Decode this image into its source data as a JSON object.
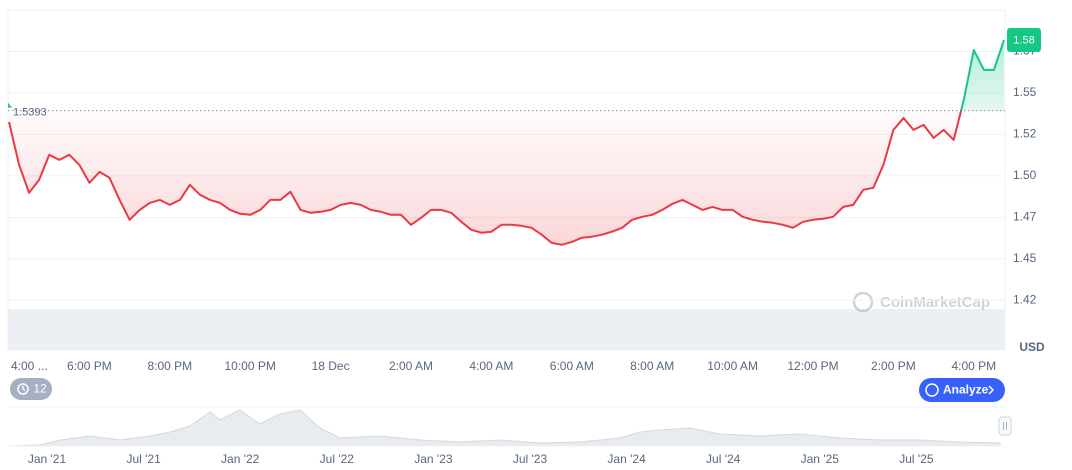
{
  "chart_data": {
    "type": "line",
    "categories": [
      "4:00 ...",
      null,
      null,
      null,
      null,
      null,
      null,
      null,
      "6:00 PM",
      null,
      null,
      null,
      null,
      null,
      null,
      null,
      "8:00 PM",
      null,
      null,
      null,
      null,
      null,
      null,
      null,
      "10:00 PM",
      null,
      null,
      null,
      null,
      null,
      null,
      null,
      "18 Dec",
      null,
      null,
      null,
      null,
      null,
      null,
      null,
      "2:00 AM",
      null,
      null,
      null,
      null,
      null,
      null,
      null,
      "4:00 AM",
      null,
      null,
      null,
      null,
      null,
      null,
      null,
      "6:00 AM",
      null,
      null,
      null,
      null,
      null,
      null,
      null,
      "8:00 AM",
      null,
      null,
      null,
      null,
      null,
      null,
      null,
      "10:00 AM",
      null,
      null,
      null,
      null,
      null,
      null,
      null,
      "12:00 PM",
      null,
      null,
      null,
      null,
      null,
      null,
      null,
      "2:00 PM",
      null,
      null,
      null,
      null,
      null,
      null,
      null,
      "4:00 PM",
      null,
      null,
      null
    ],
    "values": [
      1.5325,
      1.5066,
      1.4898,
      1.4976,
      1.5127,
      1.5096,
      1.5127,
      1.5066,
      1.4958,
      1.5024,
      1.4988,
      1.4855,
      1.4735,
      1.4795,
      1.4837,
      1.4855,
      1.4825,
      1.4855,
      1.4946,
      1.4886,
      1.4855,
      1.4837,
      1.4795,
      1.4771,
      1.4765,
      1.4795,
      1.4855,
      1.4855,
      1.4904,
      1.4795,
      1.4777,
      1.4783,
      1.4795,
      1.4825,
      1.4837,
      1.4825,
      1.4795,
      1.4783,
      1.4765,
      1.4765,
      1.4705,
      1.4747,
      1.4795,
      1.4795,
      1.4777,
      1.4723,
      1.4675,
      1.4657,
      1.4663,
      1.4705,
      1.4705,
      1.4699,
      1.4687,
      1.4645,
      1.4596,
      1.4584,
      1.4602,
      1.4627,
      1.4633,
      1.4645,
      1.4663,
      1.4687,
      1.4735,
      1.4753,
      1.4765,
      1.4795,
      1.4831,
      1.4855,
      1.4825,
      1.4795,
      1.4813,
      1.4795,
      1.4795,
      1.4753,
      1.4735,
      1.4723,
      1.4717,
      1.4705,
      1.4687,
      1.4723,
      1.4735,
      1.4741,
      1.4753,
      1.4813,
      1.4825,
      1.4916,
      1.4928,
      1.5066,
      1.5277,
      1.5349,
      1.5277,
      1.5307,
      1.5229,
      1.5277,
      1.5217,
      1.5458,
      1.5759,
      1.5639,
      1.5639,
      1.5819
    ],
    "colors": {
      "above": "#16c784",
      "below": "#ea3943"
    },
    "reference_price": 1.5393,
    "last_price_label": "1.58",
    "y_axis_label": "USD",
    "ylim": [
      1.395,
      1.6
    ],
    "yticks": [
      {
        "value": 1.575,
        "label": "1.57"
      },
      1.55,
      {
        "value": 1.525,
        "label": "1.52"
      },
      {
        "value": 1.5,
        "label": "1.50"
      },
      {
        "value": 1.475,
        "label": "1.47"
      },
      1.45,
      {
        "value": 1.425,
        "label": "1.42"
      }
    ],
    "grid": true,
    "watermark": "CoinMarketCap"
  },
  "controls": {
    "history_count": "12",
    "analyze": "Analyze"
  },
  "navigator": {
    "labels": [
      "Jan '21",
      "Jul '21",
      "Jan '22",
      "Jul '22",
      "Jan '23",
      "Jul '23",
      "Jan '24",
      "Jul '24",
      "Jan '25",
      "Jul '25"
    ]
  }
}
